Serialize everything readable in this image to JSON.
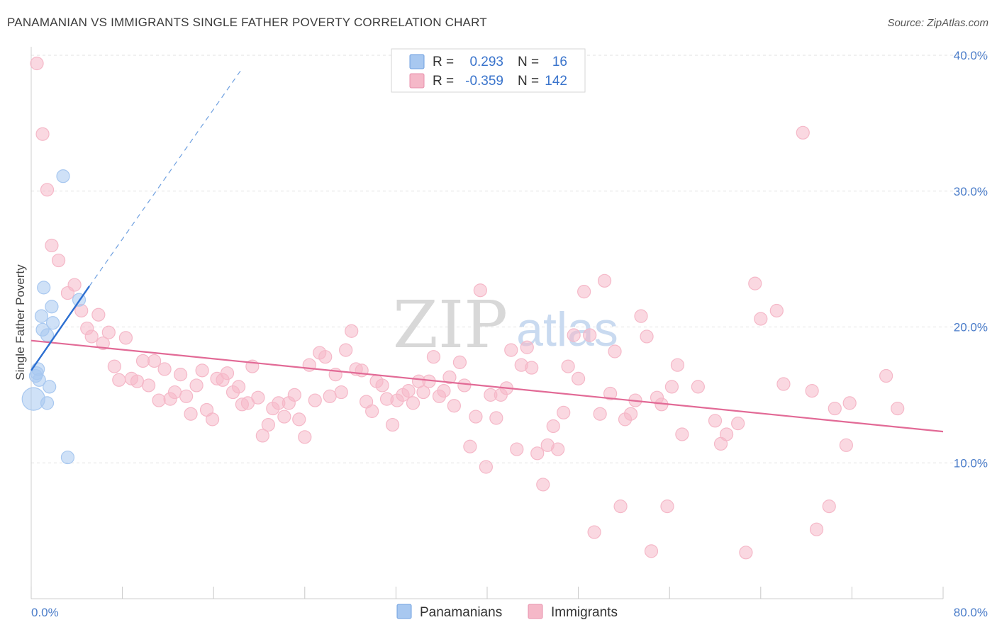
{
  "title": "PANAMANIAN VS IMMIGRANTS SINGLE FATHER POVERTY CORRELATION CHART",
  "source": "Source: ZipAtlas.com",
  "watermark": {
    "zip": "ZIP",
    "atlas": "atlas"
  },
  "legend": {
    "rows": [
      {
        "r_label": "R =",
        "r_value": "0.293",
        "n_label": "N =",
        "n_value": "16",
        "color": "#a8c8f0"
      },
      {
        "r_label": "R =",
        "r_value": "-0.359",
        "n_label": "N =",
        "n_value": "142",
        "color": "#f5b8c8"
      }
    ]
  },
  "bottom_legend": [
    {
      "label": "Panamanians",
      "color": "#a8c8f0"
    },
    {
      "label": "Immigrants",
      "color": "#f5b8c8"
    }
  ],
  "chart_data": {
    "type": "scatter",
    "xlabel": "",
    "ylabel": "Single Father Poverty",
    "xlim": [
      0,
      80
    ],
    "ylim": [
      0,
      40
    ],
    "x_tick_labels": [
      "0.0%",
      "80.0%"
    ],
    "y_tick_labels": [
      "10.0%",
      "20.0%",
      "30.0%",
      "40.0%"
    ],
    "y_ticks": [
      10,
      20,
      30,
      40
    ],
    "grid": true,
    "legend_position": "top-center",
    "series": [
      {
        "name": "Panamanians",
        "color": "#6fa0e0",
        "fill": "#a8c8f0",
        "points": [
          [
            0.2,
            14.7
          ],
          [
            0.4,
            16.4
          ],
          [
            0.6,
            16.9
          ],
          [
            0.7,
            16.1
          ],
          [
            0.9,
            20.8
          ],
          [
            1.1,
            22.9
          ],
          [
            1.0,
            19.8
          ],
          [
            1.4,
            19.4
          ],
          [
            1.6,
            15.6
          ],
          [
            1.8,
            21.5
          ],
          [
            1.9,
            20.3
          ],
          [
            1.4,
            14.4
          ],
          [
            2.8,
            31.1
          ],
          [
            3.2,
            10.4
          ],
          [
            4.2,
            22.0
          ],
          [
            0.5,
            16.6
          ]
        ],
        "trend": {
          "x": [
            0,
            5.1
          ],
          "y": [
            16.8,
            23.0
          ]
        },
        "trend_ext": {
          "x": [
            5.1,
            18.4
          ],
          "y": [
            23.0,
            38.9
          ]
        }
      },
      {
        "name": "Immigrants",
        "color": "#e26a96",
        "fill": "#f5b8c8",
        "points": [
          [
            0.5,
            39.4
          ],
          [
            1.0,
            34.2
          ],
          [
            1.4,
            30.1
          ],
          [
            1.8,
            26.0
          ],
          [
            2.4,
            24.9
          ],
          [
            3.8,
            23.1
          ],
          [
            3.2,
            22.5
          ],
          [
            4.4,
            21.2
          ],
          [
            4.9,
            19.9
          ],
          [
            5.3,
            19.3
          ],
          [
            5.9,
            20.9
          ],
          [
            6.3,
            18.8
          ],
          [
            6.8,
            19.6
          ],
          [
            7.3,
            17.1
          ],
          [
            7.7,
            16.1
          ],
          [
            8.3,
            19.2
          ],
          [
            8.8,
            16.2
          ],
          [
            9.3,
            16.0
          ],
          [
            9.8,
            17.5
          ],
          [
            10.3,
            15.7
          ],
          [
            10.8,
            17.5
          ],
          [
            11.2,
            14.6
          ],
          [
            11.7,
            16.9
          ],
          [
            12.2,
            14.7
          ],
          [
            12.6,
            15.2
          ],
          [
            13.1,
            16.5
          ],
          [
            13.6,
            14.9
          ],
          [
            14.0,
            13.6
          ],
          [
            14.5,
            15.7
          ],
          [
            15.0,
            16.8
          ],
          [
            15.4,
            13.9
          ],
          [
            15.9,
            13.2
          ],
          [
            16.3,
            16.2
          ],
          [
            16.8,
            16.1
          ],
          [
            17.2,
            16.6
          ],
          [
            17.7,
            15.2
          ],
          [
            18.2,
            15.6
          ],
          [
            18.5,
            14.3
          ],
          [
            19.0,
            14.4
          ],
          [
            19.4,
            17.1
          ],
          [
            19.9,
            14.8
          ],
          [
            20.3,
            12.0
          ],
          [
            20.8,
            12.8
          ],
          [
            21.2,
            14.0
          ],
          [
            21.7,
            14.4
          ],
          [
            22.2,
            13.4
          ],
          [
            22.6,
            14.4
          ],
          [
            23.1,
            15.0
          ],
          [
            23.5,
            13.2
          ],
          [
            24.0,
            11.9
          ],
          [
            24.4,
            17.2
          ],
          [
            24.9,
            14.6
          ],
          [
            25.3,
            18.1
          ],
          [
            25.8,
            17.8
          ],
          [
            26.2,
            14.9
          ],
          [
            26.7,
            16.5
          ],
          [
            27.2,
            15.2
          ],
          [
            27.6,
            18.3
          ],
          [
            28.1,
            19.7
          ],
          [
            28.5,
            16.9
          ],
          [
            29.0,
            16.8
          ],
          [
            29.4,
            14.5
          ],
          [
            29.9,
            13.8
          ],
          [
            30.3,
            16.0
          ],
          [
            30.8,
            15.7
          ],
          [
            31.2,
            14.7
          ],
          [
            31.7,
            12.8
          ],
          [
            32.1,
            14.6
          ],
          [
            32.6,
            15.0
          ],
          [
            33.1,
            15.3
          ],
          [
            33.5,
            14.4
          ],
          [
            34.0,
            16.0
          ],
          [
            34.4,
            15.2
          ],
          [
            34.9,
            16.0
          ],
          [
            35.3,
            17.8
          ],
          [
            35.8,
            14.9
          ],
          [
            36.2,
            15.3
          ],
          [
            36.7,
            16.3
          ],
          [
            37.1,
            14.2
          ],
          [
            37.6,
            17.4
          ],
          [
            38.0,
            15.7
          ],
          [
            38.5,
            11.2
          ],
          [
            39.0,
            13.4
          ],
          [
            39.4,
            22.7
          ],
          [
            39.9,
            9.7
          ],
          [
            40.3,
            15.0
          ],
          [
            40.8,
            13.3
          ],
          [
            41.2,
            15.0
          ],
          [
            41.7,
            15.5
          ],
          [
            42.1,
            18.3
          ],
          [
            42.6,
            11.0
          ],
          [
            43.0,
            17.2
          ],
          [
            43.5,
            18.5
          ],
          [
            43.9,
            17.0
          ],
          [
            44.4,
            10.7
          ],
          [
            44.9,
            8.4
          ],
          [
            45.3,
            11.3
          ],
          [
            45.8,
            12.7
          ],
          [
            46.2,
            11.0
          ],
          [
            46.7,
            13.7
          ],
          [
            47.1,
            17.1
          ],
          [
            47.6,
            19.4
          ],
          [
            48.0,
            16.2
          ],
          [
            48.5,
            22.6
          ],
          [
            49.0,
            19.4
          ],
          [
            49.4,
            4.9
          ],
          [
            49.9,
            13.6
          ],
          [
            50.3,
            23.4
          ],
          [
            50.8,
            15.1
          ],
          [
            51.2,
            18.2
          ],
          [
            51.7,
            6.8
          ],
          [
            52.1,
            13.2
          ],
          [
            52.6,
            13.6
          ],
          [
            53.0,
            14.6
          ],
          [
            53.5,
            20.8
          ],
          [
            54.0,
            19.3
          ],
          [
            54.4,
            3.5
          ],
          [
            54.9,
            14.8
          ],
          [
            55.3,
            14.3
          ],
          [
            55.8,
            6.8
          ],
          [
            56.2,
            15.6
          ],
          [
            56.7,
            17.2
          ],
          [
            57.1,
            12.1
          ],
          [
            58.5,
            15.6
          ],
          [
            60.0,
            13.1
          ],
          [
            60.5,
            11.4
          ],
          [
            61.0,
            12.1
          ],
          [
            62.0,
            12.9
          ],
          [
            62.7,
            3.4
          ],
          [
            63.5,
            23.2
          ],
          [
            64.0,
            20.6
          ],
          [
            65.4,
            21.2
          ],
          [
            66.0,
            15.8
          ],
          [
            67.7,
            34.3
          ],
          [
            68.5,
            15.3
          ],
          [
            68.9,
            5.1
          ],
          [
            70.0,
            6.8
          ],
          [
            70.5,
            14.0
          ],
          [
            71.5,
            11.3
          ],
          [
            71.8,
            14.4
          ],
          [
            75.0,
            16.4
          ],
          [
            76.0,
            14.0
          ]
        ],
        "trend": {
          "x": [
            0,
            80
          ],
          "y": [
            19.0,
            12.3
          ]
        }
      }
    ]
  }
}
